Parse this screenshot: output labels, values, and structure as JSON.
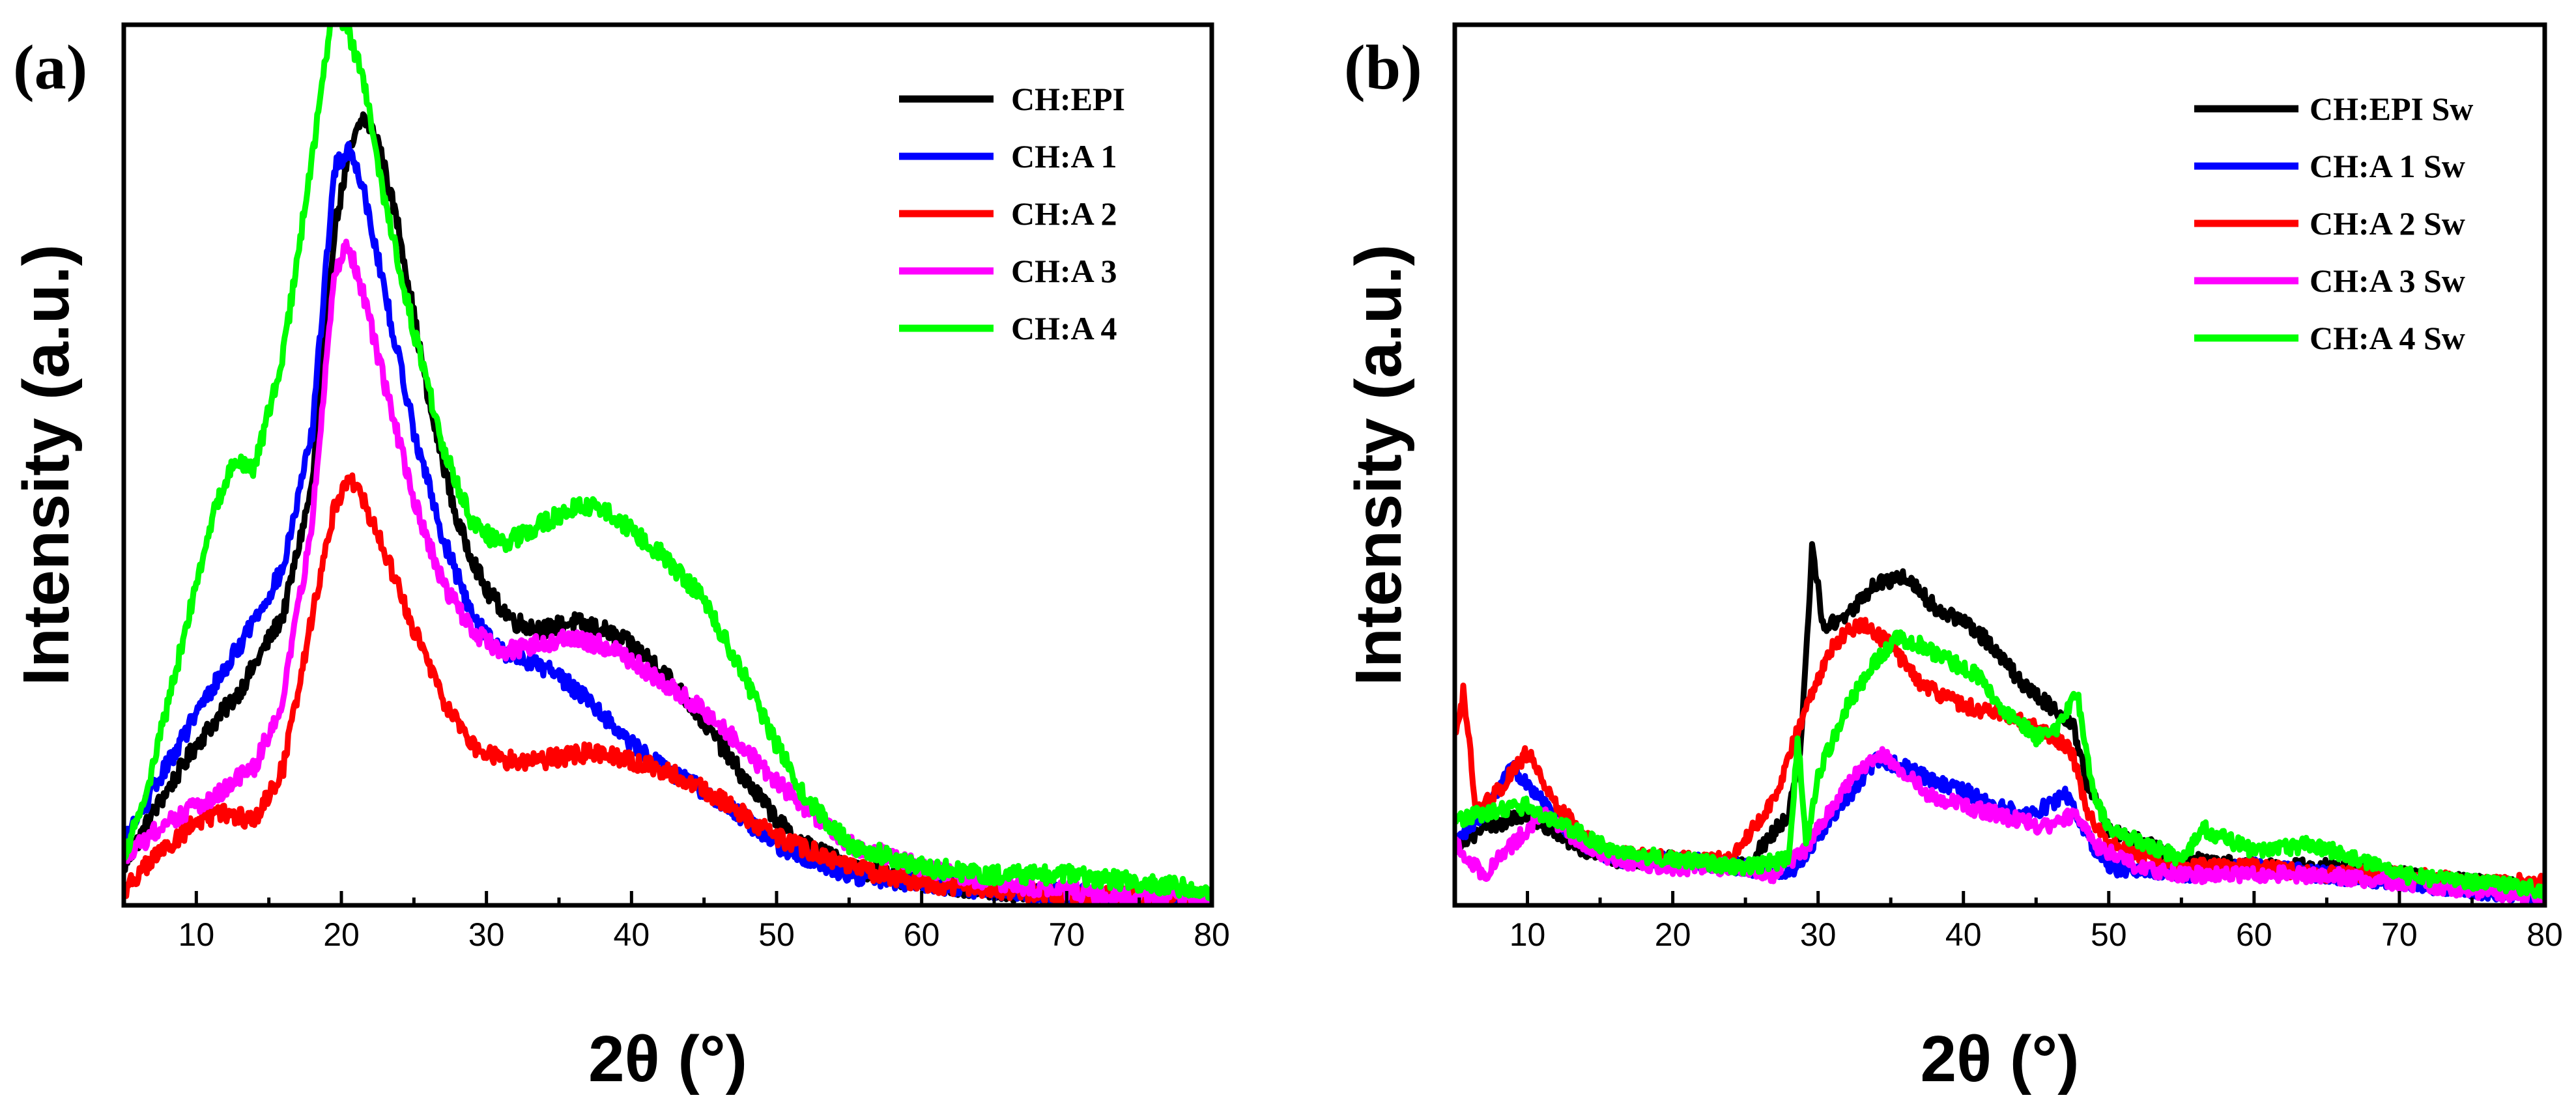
{
  "chart_data": [
    {
      "type": "line",
      "panel_label": "(a)",
      "xlabel": "2θ (°)",
      "ylabel": "Intensity (a.u.)",
      "xlim": [
        5,
        80
      ],
      "ylim": [
        0,
        1.15
      ],
      "xticks": [
        10,
        20,
        30,
        40,
        50,
        60,
        70,
        80
      ],
      "yticks_shown": false,
      "legend_position": "top-right",
      "series": [
        {
          "name": "CH:EPI",
          "color": "#000000",
          "noise": 0.012,
          "x": [
            5,
            7,
            10,
            13,
            16,
            18,
            19.5,
            20.5,
            21.5,
            22.5,
            24,
            26,
            28,
            30,
            32,
            34,
            36,
            38,
            40,
            42,
            45,
            48,
            51,
            55,
            60,
            65,
            70,
            75,
            80
          ],
          "y": [
            0.05,
            0.12,
            0.21,
            0.28,
            0.38,
            0.55,
            0.88,
            0.98,
            1.03,
            1.0,
            0.88,
            0.66,
            0.5,
            0.41,
            0.37,
            0.36,
            0.37,
            0.36,
            0.34,
            0.31,
            0.24,
            0.16,
            0.09,
            0.05,
            0.03,
            0.02,
            0.01,
            0.005,
            0.005
          ]
        },
        {
          "name": "CH:A 1",
          "color": "#0000ff",
          "noise": 0.012,
          "x": [
            5,
            7,
            10,
            13,
            16,
            18,
            19.5,
            20.5,
            21.5,
            23,
            25,
            27,
            29,
            31,
            33,
            35,
            37,
            40,
            43,
            46,
            50,
            55,
            60,
            65,
            70,
            75,
            80
          ],
          "y": [
            0.08,
            0.15,
            0.25,
            0.34,
            0.44,
            0.62,
            0.96,
            0.99,
            0.94,
            0.8,
            0.62,
            0.48,
            0.38,
            0.33,
            0.32,
            0.3,
            0.27,
            0.21,
            0.17,
            0.14,
            0.08,
            0.04,
            0.03,
            0.02,
            0.015,
            0.01,
            0.01
          ]
        },
        {
          "name": "CH:A 2",
          "color": "#ff0000",
          "noise": 0.012,
          "x": [
            5,
            7,
            10,
            12,
            14,
            16,
            18,
            19.5,
            20.5,
            21.5,
            23,
            25,
            27,
            29,
            31,
            34,
            37,
            40,
            43,
            46,
            50,
            55,
            60,
            65,
            70,
            75,
            80
          ],
          "y": [
            0.02,
            0.06,
            0.11,
            0.12,
            0.11,
            0.18,
            0.38,
            0.52,
            0.56,
            0.53,
            0.46,
            0.36,
            0.27,
            0.21,
            0.19,
            0.19,
            0.2,
            0.19,
            0.17,
            0.14,
            0.09,
            0.05,
            0.03,
            0.02,
            0.015,
            0.01,
            0.01
          ]
        },
        {
          "name": "CH:A 3",
          "color": "#ff00ff",
          "noise": 0.012,
          "x": [
            5,
            8,
            11,
            14,
            16,
            18,
            19.5,
            20.5,
            21.5,
            23,
            25,
            27,
            29,
            31,
            33,
            36,
            38,
            40,
            43,
            46,
            50,
            55,
            60,
            65,
            70,
            75,
            80
          ],
          "y": [
            0.06,
            0.11,
            0.14,
            0.18,
            0.27,
            0.5,
            0.83,
            0.86,
            0.8,
            0.68,
            0.53,
            0.42,
            0.36,
            0.33,
            0.34,
            0.35,
            0.34,
            0.32,
            0.28,
            0.24,
            0.16,
            0.08,
            0.05,
            0.03,
            0.02,
            0.01,
            0.01
          ]
        },
        {
          "name": "CH:A 4",
          "color": "#00ff00",
          "noise": 0.012,
          "x": [
            5,
            7,
            9,
            11,
            12.5,
            14,
            16,
            18,
            19.5,
            20.5,
            21.5,
            23,
            25,
            27,
            29,
            31,
            33,
            36,
            38,
            40,
            42,
            45,
            48,
            50,
            52,
            55,
            60,
            65,
            70,
            75,
            80
          ],
          "y": [
            0.06,
            0.18,
            0.34,
            0.5,
            0.58,
            0.57,
            0.72,
            0.98,
            1.18,
            1.14,
            1.08,
            0.92,
            0.75,
            0.6,
            0.5,
            0.47,
            0.49,
            0.52,
            0.52,
            0.49,
            0.46,
            0.4,
            0.29,
            0.21,
            0.14,
            0.08,
            0.05,
            0.04,
            0.04,
            0.03,
            0.02
          ]
        }
      ]
    },
    {
      "type": "line",
      "panel_label": "(b)",
      "xlabel": "2θ (°)",
      "ylabel": "Intensity (a.u.)",
      "xlim": [
        5,
        80
      ],
      "ylim": [
        0,
        1.15
      ],
      "xticks": [
        10,
        20,
        30,
        40,
        50,
        60,
        70,
        80
      ],
      "yticks_shown": false,
      "legend_position": "top-right",
      "series": [
        {
          "name": "CH:EPI Sw",
          "color": "#000000",
          "noise": 0.01,
          "x": [
            5,
            7,
            10,
            13,
            16,
            20,
            25,
            28,
            28.8,
            29.6,
            30.4,
            32,
            34,
            36,
            38,
            40,
            42,
            44,
            46,
            47.5,
            48.5,
            50,
            55,
            60,
            65,
            70,
            75,
            80
          ],
          "y": [
            0.08,
            0.1,
            0.12,
            0.08,
            0.06,
            0.06,
            0.05,
            0.12,
            0.2,
            0.47,
            0.36,
            0.38,
            0.42,
            0.43,
            0.39,
            0.37,
            0.34,
            0.29,
            0.26,
            0.24,
            0.16,
            0.1,
            0.06,
            0.05,
            0.05,
            0.04,
            0.03,
            0.02
          ]
        },
        {
          "name": "CH:A 1 Sw",
          "color": "#0000ff",
          "noise": 0.01,
          "x": [
            5,
            7,
            9,
            11,
            13,
            16,
            20,
            25,
            28,
            30,
            32,
            34,
            36,
            38,
            40,
            42,
            44,
            46,
            47,
            48.5,
            50,
            55,
            60,
            65,
            70,
            75,
            80
          ],
          "y": [
            0.08,
            0.12,
            0.18,
            0.14,
            0.09,
            0.06,
            0.06,
            0.05,
            0.04,
            0.09,
            0.14,
            0.19,
            0.18,
            0.16,
            0.15,
            0.13,
            0.12,
            0.13,
            0.15,
            0.09,
            0.05,
            0.04,
            0.05,
            0.04,
            0.03,
            0.02,
            0.01
          ]
        },
        {
          "name": "CH:A 2 Sw",
          "color": "#ff0000",
          "noise": 0.01,
          "x": [
            5,
            5.6,
            6.5,
            8,
            10,
            12,
            15,
            20,
            24,
            27,
            29,
            31,
            33,
            35,
            37,
            40,
            43,
            46,
            47.5,
            48.5,
            50,
            55,
            60,
            65,
            70,
            75,
            80
          ],
          "y": [
            0.22,
            0.28,
            0.12,
            0.15,
            0.2,
            0.13,
            0.07,
            0.06,
            0.06,
            0.14,
            0.25,
            0.34,
            0.37,
            0.34,
            0.29,
            0.26,
            0.25,
            0.22,
            0.2,
            0.12,
            0.08,
            0.05,
            0.05,
            0.04,
            0.04,
            0.03,
            0.03
          ]
        },
        {
          "name": "CH:A 3 Sw",
          "color": "#ff00ff",
          "noise": 0.01,
          "x": [
            5,
            7,
            9,
            11,
            13,
            16,
            20,
            25,
            27,
            29,
            31,
            33,
            34.5,
            36,
            38,
            40,
            42,
            44,
            46,
            47.5,
            49,
            52,
            55,
            60,
            65,
            70,
            75,
            80
          ],
          "y": [
            0.08,
            0.04,
            0.08,
            0.12,
            0.09,
            0.06,
            0.05,
            0.05,
            0.04,
            0.07,
            0.13,
            0.18,
            0.2,
            0.17,
            0.14,
            0.13,
            0.12,
            0.11,
            0.1,
            0.12,
            0.08,
            0.05,
            0.04,
            0.04,
            0.04,
            0.03,
            0.02,
            0.01
          ]
        },
        {
          "name": "CH:A 4 Sw",
          "color": "#00ff00",
          "noise": 0.01,
          "x": [
            5,
            7,
            10,
            13,
            16,
            20,
            25,
            28,
            28.6,
            29.2,
            30,
            32,
            34,
            35.5,
            37,
            39,
            41,
            43,
            45,
            46.5,
            47.8,
            49,
            50,
            55,
            56.5,
            60,
            64,
            70,
            75,
            80
          ],
          "y": [
            0.11,
            0.12,
            0.13,
            0.1,
            0.07,
            0.06,
            0.05,
            0.06,
            0.22,
            0.08,
            0.17,
            0.26,
            0.32,
            0.35,
            0.34,
            0.32,
            0.3,
            0.25,
            0.22,
            0.23,
            0.28,
            0.14,
            0.1,
            0.06,
            0.1,
            0.07,
            0.08,
            0.04,
            0.03,
            0.02
          ]
        }
      ]
    }
  ]
}
